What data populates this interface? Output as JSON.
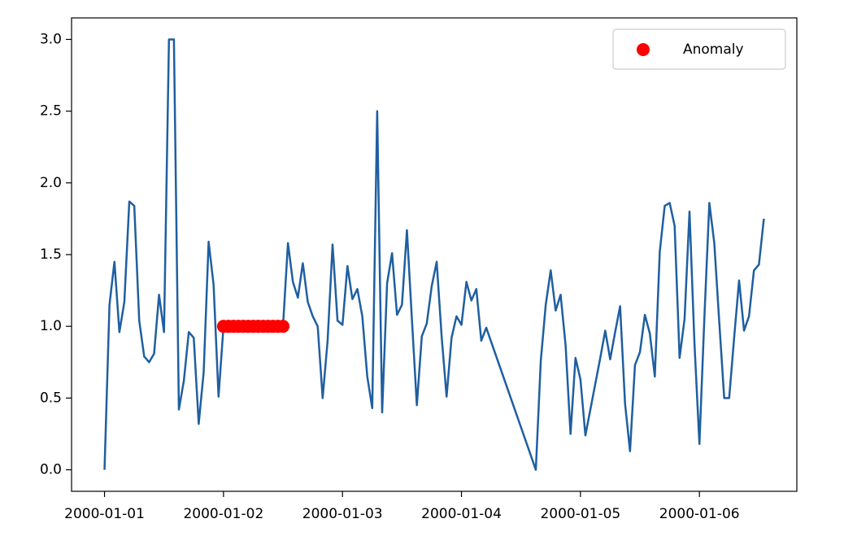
{
  "chart_data": {
    "type": "line",
    "series": [
      {
        "color": "#1f5fa0",
        "x": [
          0,
          1,
          2,
          3,
          4,
          5,
          6,
          7,
          8,
          9,
          10,
          11,
          12,
          13,
          14,
          15,
          16,
          17,
          18,
          19,
          20,
          21,
          22,
          23,
          24,
          25,
          26,
          27,
          28,
          29,
          30,
          31,
          32,
          33,
          34,
          35,
          36,
          37,
          38,
          39,
          40,
          41,
          42,
          43,
          44,
          45,
          46,
          47,
          48,
          49,
          50,
          51,
          52,
          53,
          54,
          55,
          56,
          57,
          58,
          59,
          60,
          61,
          62,
          63,
          64,
          65,
          66,
          67,
          68,
          69,
          70,
          71,
          72,
          73,
          74,
          75,
          76,
          77,
          87,
          88,
          89,
          90,
          91,
          92,
          93,
          94,
          95,
          96,
          97,
          98,
          99,
          100,
          101,
          102,
          103,
          104,
          105,
          106,
          107,
          108,
          109,
          110,
          111,
          112,
          113,
          114,
          115,
          116,
          117,
          118,
          119,
          120,
          121,
          122,
          123,
          124,
          125,
          126,
          127,
          128,
          129,
          130,
          131,
          132,
          133
        ],
        "values": [
          0.0,
          1.15,
          1.45,
          0.96,
          1.17,
          1.87,
          1.84,
          1.04,
          0.79,
          0.75,
          0.81,
          1.22,
          0.96,
          3.0,
          3.0,
          0.42,
          0.62,
          0.96,
          0.92,
          0.32,
          0.68,
          1.59,
          1.29,
          0.51,
          1.0,
          1.0,
          1.0,
          1.0,
          1.0,
          1.0,
          1.0,
          1.0,
          1.0,
          1.0,
          1.0,
          1.0,
          1.0,
          1.58,
          1.31,
          1.2,
          1.44,
          1.17,
          1.07,
          1.0,
          0.5,
          0.9,
          1.57,
          1.04,
          1.01,
          1.42,
          1.19,
          1.26,
          1.07,
          0.65,
          0.43,
          2.5,
          0.4,
          1.3,
          1.51,
          1.08,
          1.15,
          1.67,
          1.05,
          0.45,
          0.93,
          1.02,
          1.28,
          1.45,
          0.93,
          0.51,
          0.92,
          1.07,
          1.01,
          1.31,
          1.18,
          1.26,
          0.9,
          0.99,
          0.0,
          0.76,
          1.15,
          1.39,
          1.11,
          1.22,
          0.87,
          0.25,
          0.78,
          0.63,
          0.24,
          0.42,
          0.6,
          0.78,
          0.97,
          0.77,
          0.96,
          1.14,
          0.46,
          0.13,
          0.73,
          0.82,
          1.08,
          0.95,
          0.65,
          1.52,
          1.84,
          1.86,
          1.7,
          0.78,
          1.05,
          1.8,
          0.88,
          0.18,
          1.06,
          1.86,
          1.58,
          1.03,
          0.5,
          0.5,
          0.92,
          1.32,
          0.97,
          1.07,
          1.39,
          1.43,
          1.75
        ]
      },
      {
        "name": "Anomaly",
        "color": "#ff0000",
        "marker": "o",
        "x": [
          24,
          25,
          26,
          27,
          28,
          29,
          30,
          31,
          32,
          33,
          34,
          35,
          36
        ],
        "values": [
          1.0,
          1.0,
          1.0,
          1.0,
          1.0,
          1.0,
          1.0,
          1.0,
          1.0,
          1.0,
          1.0,
          1.0,
          1.0
        ]
      }
    ],
    "xlim": [
      -6.65,
      139.65
    ],
    "xticks": [
      {
        "value": 0,
        "label": "2000-01-01"
      },
      {
        "value": 24,
        "label": "2000-01-02"
      },
      {
        "value": 48,
        "label": "2000-01-03"
      },
      {
        "value": 72,
        "label": "2000-01-04"
      },
      {
        "value": 96,
        "label": "2000-01-05"
      },
      {
        "value": 120,
        "label": "2000-01-06"
      }
    ],
    "ylim": [
      -0.15,
      3.15
    ],
    "yticks": [
      {
        "value": 0,
        "label": "0.0"
      },
      0.5,
      {
        "value": 1,
        "label": "1.0"
      },
      1.5,
      {
        "value": 2,
        "label": "2.0"
      },
      2.5,
      {
        "value": 3,
        "label": "3.0"
      }
    ],
    "legend": "upper right"
  }
}
